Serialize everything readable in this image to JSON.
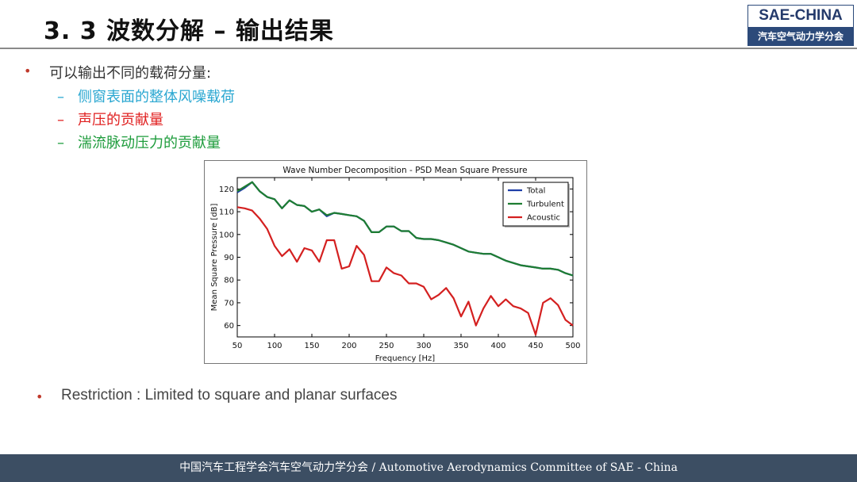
{
  "header": {
    "title": "3. 3 波数分解 – 输出结果",
    "logo_text": "SAE-CHINA",
    "logo_subtext": "汽车空气动力学分会"
  },
  "bullets": {
    "intro": "可以输出不同的载荷分量:",
    "items": [
      {
        "text": "侧窗表面的整体风噪载荷",
        "color": "#2aa7d1"
      },
      {
        "text": "声压的贡献量",
        "color": "#e02020"
      },
      {
        "text": "湍流脉动压力的贡献量",
        "color": "#1e9c3c"
      }
    ],
    "dash": "–",
    "restriction": "Restriction : Limited to square and planar surfaces"
  },
  "chart_data": {
    "type": "line",
    "title": "Wave Number Decomposition - PSD Mean Square Pressure",
    "xlabel": "Frequency [Hz]",
    "ylabel": "Mean Square Pressure [dB]",
    "xlim": [
      50,
      500
    ],
    "ylim": [
      55,
      125
    ],
    "xticks": [
      50,
      100,
      150,
      200,
      250,
      300,
      350,
      400,
      450,
      500
    ],
    "yticks": [
      60,
      70,
      80,
      90,
      100,
      110,
      120
    ],
    "legend_position": "top-right",
    "grid": false,
    "x": [
      50,
      60,
      70,
      80,
      90,
      100,
      110,
      120,
      130,
      140,
      150,
      160,
      170,
      180,
      190,
      200,
      210,
      220,
      230,
      240,
      250,
      260,
      270,
      280,
      290,
      300,
      310,
      320,
      330,
      340,
      350,
      360,
      370,
      380,
      390,
      400,
      410,
      420,
      430,
      440,
      450,
      460,
      470,
      480,
      490,
      500
    ],
    "series": [
      {
        "name": "Total",
        "color": "#1f3fa8",
        "values": [
          118.5,
          120.5,
          123,
          119,
          116.5,
          115.5,
          111.5,
          115,
          113,
          112.5,
          110,
          111,
          108,
          109.5,
          109,
          108.5,
          108,
          106,
          101,
          101,
          103.5,
          103.5,
          101.5,
          101.5,
          98.5,
          98,
          98,
          97.5,
          96.5,
          95.5,
          94,
          92.5,
          92,
          91.5,
          91.5,
          90,
          88.5,
          87.5,
          86.5,
          86,
          85.5,
          85,
          85,
          84.5,
          83,
          82
        ]
      },
      {
        "name": "Turbulent",
        "color": "#1e7d32",
        "values": [
          119,
          121,
          123,
          119,
          116.5,
          115.5,
          111.5,
          115,
          113,
          112.5,
          110,
          111,
          108.5,
          109.5,
          109,
          108.5,
          108,
          106,
          101,
          101,
          103.5,
          103.5,
          101.5,
          101.5,
          98.5,
          98,
          98,
          97.5,
          96.5,
          95.5,
          94,
          92.5,
          92,
          91.5,
          91.5,
          90,
          88.5,
          87.5,
          86.5,
          86,
          85.5,
          85,
          85,
          84.5,
          83,
          82
        ]
      },
      {
        "name": "Acoustic",
        "color": "#d42020",
        "values": [
          112,
          111.5,
          110.5,
          107,
          102.5,
          95,
          90.5,
          93.5,
          88,
          94,
          93,
          88,
          97.5,
          97.5,
          85,
          86,
          95,
          91,
          79.5,
          79.5,
          85.5,
          83,
          82,
          78.5,
          78.5,
          77,
          71.5,
          73.5,
          76.5,
          72,
          64,
          70.5,
          60,
          67.5,
          73,
          68.5,
          71.5,
          68.5,
          67.5,
          65.5,
          56,
          70,
          72,
          69,
          62.5,
          60
        ]
      }
    ]
  },
  "footer": {
    "text": "中国汽车工程学会汽车空气动力学分会 / Automotive Aerodynamics Committee of SAE - China"
  }
}
